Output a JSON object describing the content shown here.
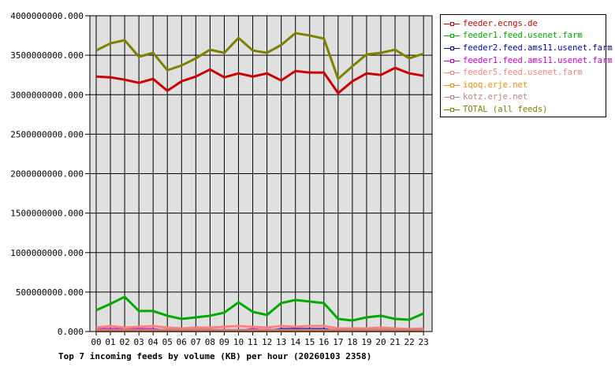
{
  "chart_data": {
    "type": "line",
    "title": "Top 7 incoming feeds by volume (KB) per hour (20260103 2358)",
    "xlabel": "",
    "ylabel": "",
    "ylim": [
      0,
      4000000000
    ],
    "yticks": [
      "0.000",
      "500000000.000",
      "1000000000.000",
      "1500000000.000",
      "2000000000.000",
      "2500000000.000",
      "3000000000.000",
      "3500000000.000",
      "4000000000.000"
    ],
    "grid": true,
    "legend_position": "right",
    "categories": [
      "00",
      "01",
      "02",
      "03",
      "04",
      "05",
      "06",
      "07",
      "08",
      "09",
      "10",
      "11",
      "12",
      "13",
      "14",
      "15",
      "16",
      "17",
      "18",
      "19",
      "20",
      "21",
      "22",
      "23"
    ],
    "series": [
      {
        "name": "feeder.ecngs.de",
        "color": "#cc0000",
        "values": [
          3230000000,
          3220000000,
          3190000000,
          3150000000,
          3200000000,
          3050000000,
          3170000000,
          3230000000,
          3320000000,
          3220000000,
          3270000000,
          3230000000,
          3270000000,
          3180000000,
          3300000000,
          3280000000,
          3280000000,
          3020000000,
          3170000000,
          3270000000,
          3250000000,
          3340000000,
          3270000000,
          3240000000
        ]
      },
      {
        "name": "feeder1.feed.usenet.farm",
        "color": "#00aa00",
        "values": [
          270000000,
          350000000,
          440000000,
          260000000,
          260000000,
          200000000,
          160000000,
          180000000,
          200000000,
          240000000,
          370000000,
          250000000,
          210000000,
          360000000,
          400000000,
          380000000,
          360000000,
          160000000,
          140000000,
          180000000,
          200000000,
          160000000,
          150000000,
          230000000
        ]
      },
      {
        "name": "feeder2.feed.ams11.usenet.farm",
        "color": "#0000aa",
        "values": [
          10000000,
          10000000,
          10000000,
          10000000,
          10000000,
          10000000,
          10000000,
          10000000,
          10000000,
          10000000,
          10000000,
          10000000,
          10000000,
          30000000,
          30000000,
          30000000,
          30000000,
          10000000,
          10000000,
          10000000,
          30000000,
          10000000,
          10000000,
          10000000
        ]
      },
      {
        "name": "feeder1.feed.ams11.usenet.farm",
        "color": "#cc00cc",
        "values": [
          30000000,
          30000000,
          30000000,
          30000000,
          30000000,
          10000000,
          10000000,
          10000000,
          10000000,
          10000000,
          10000000,
          30000000,
          10000000,
          10000000,
          10000000,
          10000000,
          10000000,
          10000000,
          10000000,
          10000000,
          10000000,
          10000000,
          10000000,
          10000000
        ]
      },
      {
        "name": "feeder5.feed.usenet.farm",
        "color": "#ff8080",
        "values": [
          50000000,
          70000000,
          50000000,
          60000000,
          70000000,
          50000000,
          40000000,
          50000000,
          50000000,
          60000000,
          70000000,
          60000000,
          50000000,
          70000000,
          60000000,
          70000000,
          70000000,
          40000000,
          40000000,
          40000000,
          50000000,
          40000000,
          30000000,
          40000000
        ]
      },
      {
        "name": "iqoq.erje.net",
        "color": "#ff8800",
        "values": [
          5000000,
          5000000,
          5000000,
          5000000,
          5000000,
          5000000,
          5000000,
          5000000,
          5000000,
          5000000,
          5000000,
          5000000,
          5000000,
          5000000,
          5000000,
          5000000,
          5000000,
          5000000,
          5000000,
          5000000,
          5000000,
          5000000,
          5000000,
          5000000
        ]
      },
      {
        "name": "kotz.erje.net",
        "color": "#c08080",
        "values": [
          20000000,
          20000000,
          20000000,
          20000000,
          20000000,
          20000000,
          20000000,
          20000000,
          20000000,
          20000000,
          20000000,
          20000000,
          20000000,
          20000000,
          20000000,
          20000000,
          20000000,
          20000000,
          20000000,
          20000000,
          20000000,
          20000000,
          20000000,
          20000000
        ]
      },
      {
        "name": "TOTAL (all feeds)",
        "color": "#808000",
        "values": [
          3560000000,
          3650000000,
          3690000000,
          3480000000,
          3530000000,
          3310000000,
          3370000000,
          3460000000,
          3570000000,
          3530000000,
          3720000000,
          3560000000,
          3530000000,
          3630000000,
          3780000000,
          3750000000,
          3710000000,
          3200000000,
          3360000000,
          3510000000,
          3530000000,
          3570000000,
          3460000000,
          3520000000
        ]
      }
    ]
  },
  "legend": {
    "items": [
      {
        "label": "feeder.ecngs.de",
        "color": "#cc0000"
      },
      {
        "label": "feeder1.feed.usenet.farm",
        "color": "#00aa00"
      },
      {
        "label": "feeder2.feed.ams11.usenet.farm",
        "color": "#0000aa"
      },
      {
        "label": "feeder1.feed.ams11.usenet.farm",
        "color": "#cc00cc"
      },
      {
        "label": "feeder5.feed.usenet.farm",
        "color": "#ff8080"
      },
      {
        "label": "iqoq.erje.net",
        "color": "#ff8800"
      },
      {
        "label": "kotz.erje.net",
        "color": "#c08080"
      },
      {
        "label": "TOTAL (all feeds)",
        "color": "#808000"
      }
    ]
  },
  "colors": {
    "plot_bg": "#e0e0e0",
    "grid": "#000000"
  }
}
